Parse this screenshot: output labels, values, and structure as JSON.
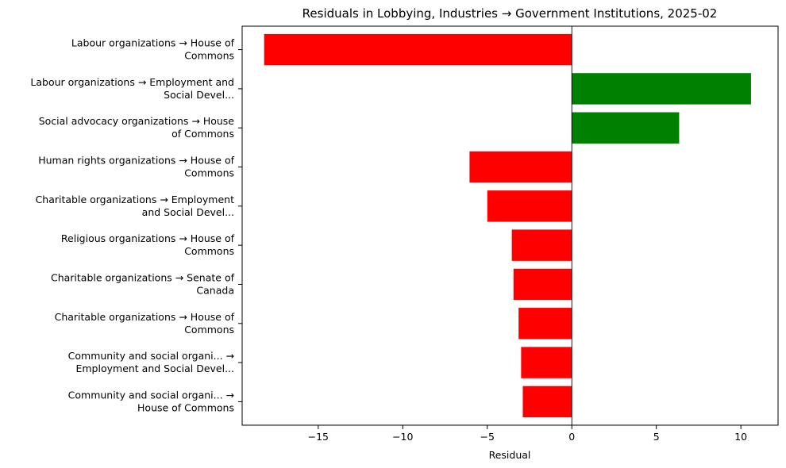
{
  "chart_data": {
    "type": "bar",
    "orientation": "horizontal",
    "title": "Residuals in Lobbying, Industries → Government Institutions, 2025-02",
    "xlabel": "Residual",
    "ylabel": "",
    "xlim": [
      -19.5,
      12.2
    ],
    "xticks": [
      -15,
      -10,
      -5,
      0,
      5,
      10
    ],
    "xtick_labels": [
      "−15",
      "−10",
      "−5",
      "0",
      "5",
      "10"
    ],
    "zero_line": true,
    "grid": false,
    "legend": "none",
    "colors": {
      "positive": "#008000",
      "negative": "#ff0000"
    },
    "categories": [
      [
        "Labour organizations → House of",
        "Commons"
      ],
      [
        "Labour organizations → Employment and",
        "Social Devel..."
      ],
      [
        "Social advocacy organizations → House",
        "of Commons"
      ],
      [
        "Human rights organizations → House of",
        "Commons"
      ],
      [
        "Charitable organizations → Employment",
        "and Social Devel..."
      ],
      [
        "Religious organizations → House of",
        "Commons"
      ],
      [
        "Charitable organizations → Senate of",
        "Canada"
      ],
      [
        "Charitable organizations → House of",
        "Commons"
      ],
      [
        "Community and social organi... →",
        "Employment and Social Devel..."
      ],
      [
        "Community and social organi... →",
        "House of Commons"
      ]
    ],
    "values": [
      -18.2,
      10.6,
      6.35,
      -6.05,
      -5.0,
      -3.55,
      -3.45,
      -3.15,
      -3.0,
      -2.9
    ]
  }
}
